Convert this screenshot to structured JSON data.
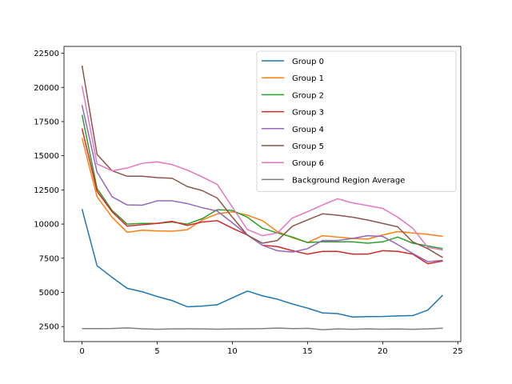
{
  "chart_data": {
    "type": "line",
    "x": [
      0,
      1,
      2,
      3,
      4,
      5,
      6,
      7,
      8,
      9,
      10,
      11,
      12,
      13,
      14,
      15,
      16,
      17,
      18,
      19,
      20,
      21,
      22,
      23,
      24
    ],
    "xlim": [
      -1.2,
      25.2
    ],
    "ylim": [
      1400,
      23000
    ],
    "xticks": [
      0,
      5,
      10,
      15,
      20,
      25
    ],
    "yticks": [
      2500,
      5000,
      7500,
      10000,
      12500,
      15000,
      17500,
      20000,
      22500
    ],
    "legend_position": "upper-right",
    "series": [
      {
        "name": "Group 0",
        "color": "#1f77b4",
        "values": [
          11100,
          6950,
          6100,
          5300,
          5050,
          4700,
          4400,
          3950,
          4000,
          4100,
          4600,
          5100,
          4750,
          4500,
          4150,
          3850,
          3500,
          3450,
          3200,
          3230,
          3240,
          3280,
          3300,
          3700,
          4800
        ]
      },
      {
        "name": "Group 1",
        "color": "#ff7f0e",
        "values": [
          16300,
          12000,
          10500,
          9400,
          9550,
          9500,
          9480,
          9580,
          10300,
          10750,
          10900,
          10650,
          10250,
          9450,
          9000,
          8650,
          9150,
          9050,
          8950,
          8900,
          9200,
          9450,
          9350,
          9250,
          9100
        ]
      },
      {
        "name": "Group 2",
        "color": "#2ca02c",
        "values": [
          18000,
          12600,
          11000,
          10000,
          10050,
          10050,
          10150,
          10000,
          10400,
          11050,
          11000,
          10500,
          9700,
          9350,
          9050,
          8650,
          8700,
          8700,
          8700,
          8600,
          8700,
          9050,
          8600,
          8400,
          8200
        ]
      },
      {
        "name": "Group 3",
        "color": "#d62728",
        "values": [
          17000,
          12400,
          10900,
          9850,
          9950,
          10050,
          10200,
          9900,
          10150,
          10250,
          9700,
          9200,
          8450,
          8350,
          8050,
          7800,
          8000,
          8000,
          7800,
          7800,
          8050,
          8000,
          7800,
          7100,
          7300
        ]
      },
      {
        "name": "Group 4",
        "color": "#9467bd",
        "values": [
          18700,
          13800,
          12000,
          11400,
          11380,
          11700,
          11700,
          11500,
          11200,
          10950,
          10100,
          9200,
          8450,
          8050,
          7950,
          8200,
          8800,
          8800,
          8950,
          9150,
          9100,
          8500,
          7850,
          7250,
          7350
        ]
      },
      {
        "name": "Group 5",
        "color": "#8c564b",
        "values": [
          21600,
          15100,
          13900,
          13500,
          13500,
          13400,
          13350,
          12750,
          12450,
          11900,
          10500,
          9200,
          8600,
          8800,
          9850,
          10300,
          10750,
          10650,
          10500,
          10300,
          10050,
          9800,
          8700,
          8200,
          7550
        ]
      },
      {
        "name": "Group 6",
        "color": "#e377c2",
        "values": [
          20100,
          14400,
          13900,
          14100,
          14450,
          14550,
          14350,
          13950,
          13450,
          12900,
          11250,
          9600,
          9150,
          9350,
          10450,
          10900,
          11400,
          11850,
          11550,
          11350,
          11150,
          10500,
          9700,
          8300,
          8100
        ]
      },
      {
        "name": "Background Region Average",
        "color": "#7f7f7f",
        "values": [
          2350,
          2350,
          2360,
          2400,
          2340,
          2300,
          2330,
          2340,
          2330,
          2310,
          2330,
          2340,
          2350,
          2390,
          2350,
          2370,
          2270,
          2330,
          2300,
          2330,
          2310,
          2320,
          2300,
          2330,
          2380
        ]
      }
    ]
  }
}
